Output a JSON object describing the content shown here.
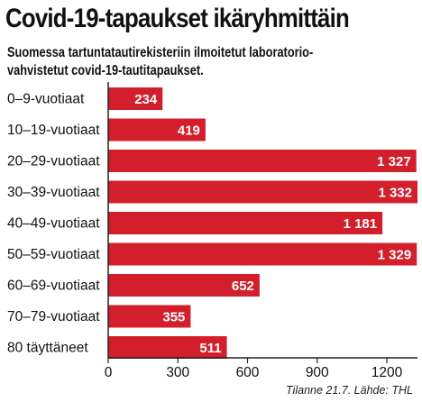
{
  "title": "Covid-19-tapaukset ikäryhmittäin",
  "subtitle_lines": [
    "Suomessa tartuntatautirekisteriin ilmoitetut laboratorio-",
    "vahvistetut covid-19-tautitapaukset."
  ],
  "source": "Tilanne 21.7. Lähde: THL",
  "colors": {
    "bar": "#d31f2c",
    "axis": "#222222"
  },
  "chart_data": {
    "type": "bar",
    "orientation": "horizontal",
    "categories": [
      "0–9-vuotiaat",
      "10–19-vuotiaat",
      "20–29-vuotiaat",
      "30–39-vuotiaat",
      "40–49-vuotiaat",
      "50–59-vuotiaat",
      "60–69-vuotiaat",
      "70–79-vuotiaat",
      "80 täyttäneet"
    ],
    "values": [
      234,
      419,
      1327,
      1332,
      1181,
      1329,
      652,
      355,
      511
    ],
    "value_labels": [
      "234",
      "419",
      "1 327",
      "1 332",
      "1 181",
      "1 329",
      "652",
      "355",
      "511"
    ],
    "xlim": [
      0,
      1332
    ],
    "xticks": [
      0,
      300,
      600,
      900,
      1200
    ],
    "xtick_labels": [
      "0",
      "300",
      "600",
      "900",
      "1200"
    ],
    "grid": false,
    "legend": "none"
  }
}
